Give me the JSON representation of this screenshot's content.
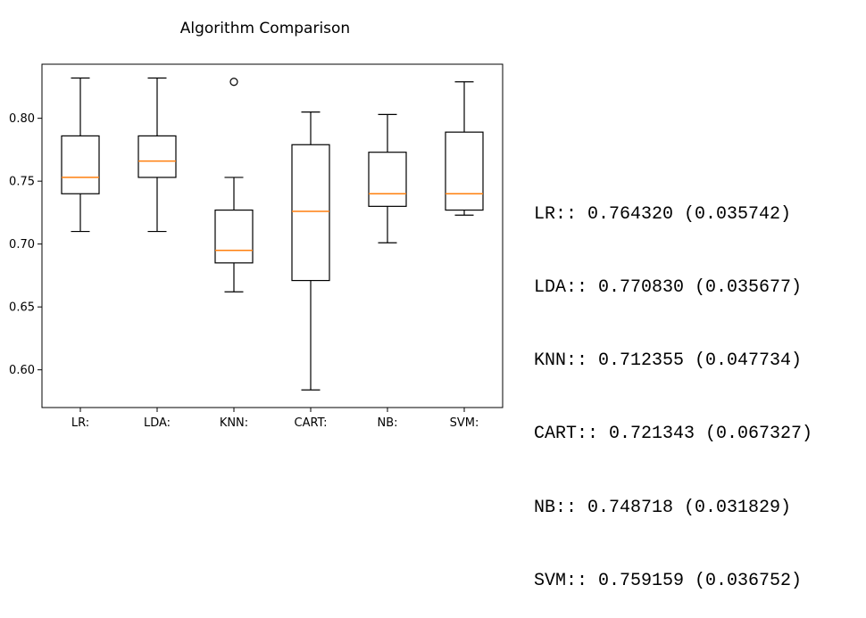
{
  "chart_data": {
    "type": "box",
    "title": "Algorithm Comparison",
    "xlabel": "",
    "ylabel": "",
    "ylim": [
      0.57,
      0.843
    ],
    "yticks": [
      "0.60",
      "0.65",
      "0.70",
      "0.75",
      "0.80"
    ],
    "grid": false,
    "categories": [
      "LR:",
      "LDA:",
      "KNN:",
      "CART:",
      "NB:",
      "SVM:"
    ],
    "boxes": [
      {
        "label": "LR:",
        "whisker_low": 0.71,
        "q1": 0.74,
        "median": 0.753,
        "q3": 0.786,
        "whisker_high": 0.832,
        "outliers": []
      },
      {
        "label": "LDA:",
        "whisker_low": 0.71,
        "q1": 0.753,
        "median": 0.766,
        "q3": 0.786,
        "whisker_high": 0.832,
        "outliers": []
      },
      {
        "label": "KNN:",
        "whisker_low": 0.662,
        "q1": 0.685,
        "median": 0.695,
        "q3": 0.727,
        "whisker_high": 0.753,
        "outliers": [
          0.829
        ]
      },
      {
        "label": "CART:",
        "whisker_low": 0.584,
        "q1": 0.671,
        "median": 0.726,
        "q3": 0.779,
        "whisker_high": 0.805,
        "outliers": []
      },
      {
        "label": "NB:",
        "whisker_low": 0.701,
        "q1": 0.73,
        "median": 0.74,
        "q3": 0.773,
        "whisker_high": 0.803,
        "outliers": []
      },
      {
        "label": "SVM:",
        "whisker_low": 0.723,
        "q1": 0.727,
        "median": 0.74,
        "q3": 0.789,
        "whisker_high": 0.829,
        "outliers": []
      }
    ],
    "colors": {
      "box": "#000000",
      "median": "#ff7f0e"
    }
  },
  "results": [
    "LR:: 0.764320 (0.035742)",
    "LDA:: 0.770830 (0.035677)",
    "KNN:: 0.712355 (0.047734)",
    "CART:: 0.721343 (0.067327)",
    "NB:: 0.748718 (0.031829)",
    "SVM:: 0.759159 (0.036752)"
  ]
}
